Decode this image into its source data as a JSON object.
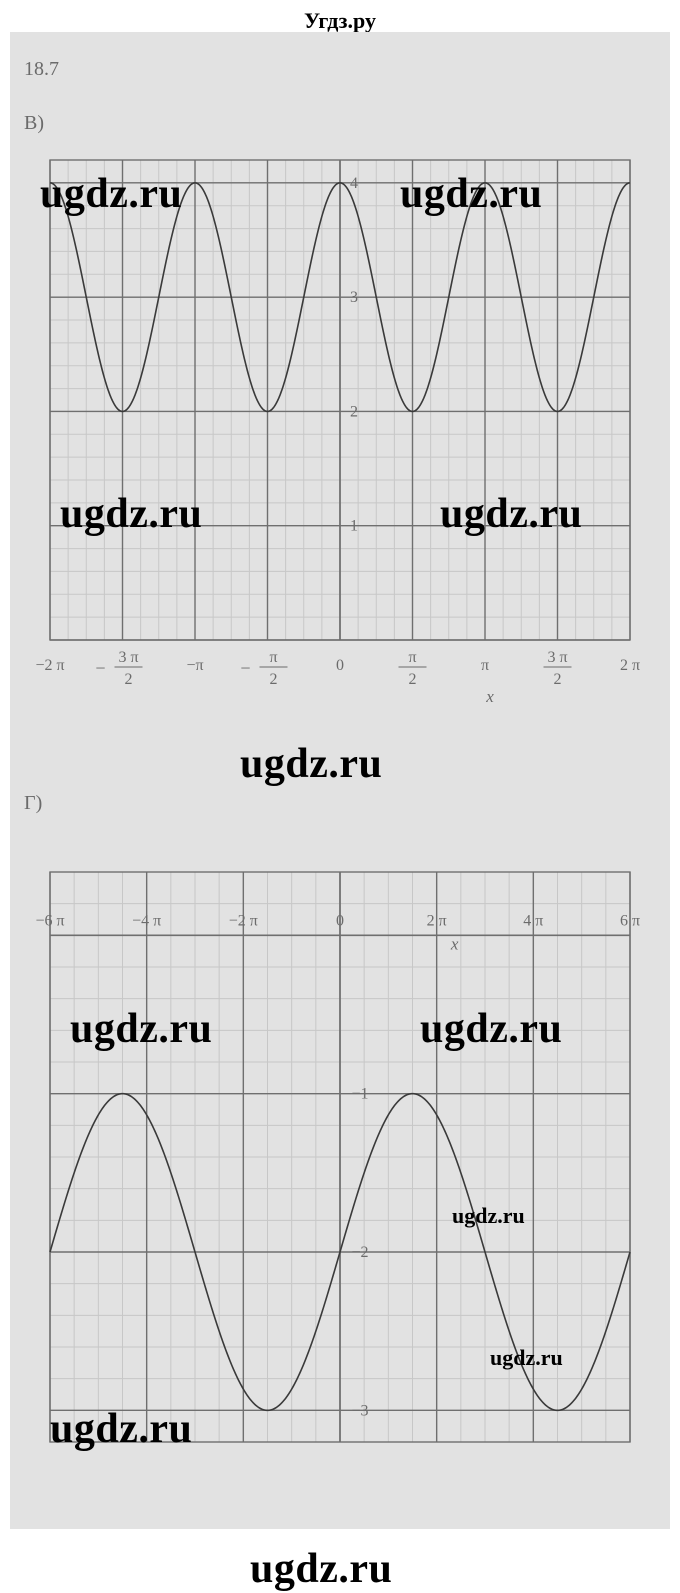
{
  "site_header": "Угдз.ру",
  "exercise_label": "18.7",
  "watermarks": {
    "text": "ugdz.ru"
  },
  "panel_b": {
    "label": "В)",
    "chart": {
      "type": "line",
      "background_color": "#e2e2e2",
      "grid_minor_color": "#c7c7c7",
      "grid_major_color": "#6f6f6f",
      "axis_color": "#6f6f6f",
      "curve_color": "#3a3a3a",
      "curve_width": 1.6,
      "xlim": [
        -6.2832,
        6.2832
      ],
      "ylim": [
        0,
        4.2
      ],
      "x_major_ticks": [
        {
          "v": -6.2832,
          "label_top": "−2 π"
        },
        {
          "v": -4.7124,
          "label_top": "3 π",
          "label_bot": "2",
          "neg": true,
          "frac": true
        },
        {
          "v": -3.1416,
          "label_top": "−π"
        },
        {
          "v": -1.5708,
          "label_top": "π",
          "label_bot": "2",
          "neg": true,
          "frac": true
        },
        {
          "v": 0,
          "label_top": "0"
        },
        {
          "v": 1.5708,
          "label_top": "π",
          "label_bot": "2",
          "frac": true
        },
        {
          "v": 3.1416,
          "label_top": "π"
        },
        {
          "v": 4.7124,
          "label_top": "3 π",
          "label_bot": "2",
          "frac": true
        },
        {
          "v": 6.2832,
          "label_top": "2 π"
        }
      ],
      "x_minor_step": 0.3927,
      "y_major_ticks": [
        1,
        2,
        3,
        4
      ],
      "y_minor_step": 0.2,
      "axis_label_x": "x",
      "function_desc": "y = cos(2x) + 3",
      "series": {
        "amplitude": 1,
        "freq": 2,
        "offset": 3
      }
    }
  },
  "panel_g": {
    "label": "Г)",
    "chart": {
      "type": "line",
      "background_color": "#e2e2e2",
      "grid_minor_color": "#c7c7c7",
      "grid_major_color": "#6f6f6f",
      "axis_color": "#6f6f6f",
      "curve_color": "#3a3a3a",
      "curve_width": 1.6,
      "xlim": [
        -18.8496,
        18.8496
      ],
      "ylim": [
        -3.2,
        0.4
      ],
      "x_major_ticks": [
        {
          "v": -18.8496,
          "label_top": "−6 π"
        },
        {
          "v": -12.5664,
          "label_top": "−4 π"
        },
        {
          "v": -6.2832,
          "label_top": "−2 π"
        },
        {
          "v": 0,
          "label_top": "0"
        },
        {
          "v": 6.2832,
          "label_top": "2 π"
        },
        {
          "v": 12.5664,
          "label_top": "4 π"
        },
        {
          "v": 18.8496,
          "label_top": "6 π"
        }
      ],
      "x_minor_step": 1.5708,
      "y_major_ticks": [
        -3,
        -2,
        -1
      ],
      "y_minor_step": 0.2,
      "axis_label_x": "x",
      "function_desc": "y = sin(x/3) − 2",
      "series": {
        "amplitude": 1,
        "freq": 0.3333333,
        "offset": -2,
        "phase": -1.5708
      }
    }
  },
  "colors": {
    "page_bg": "#ffffff",
    "text": "#5a5a5a",
    "header": "#000000",
    "watermark": "#000000"
  },
  "font": {
    "family": "Georgia, Times New Roman, serif",
    "label_size_pt": 15,
    "tick_size_pt": 13
  }
}
